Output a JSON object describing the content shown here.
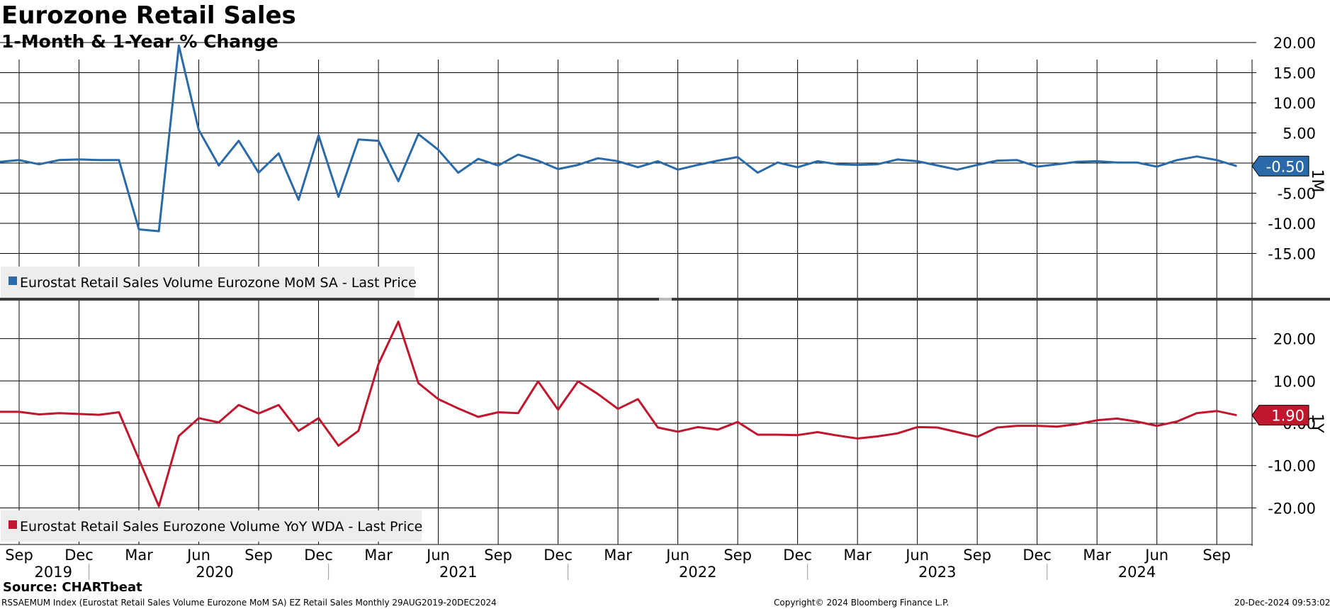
{
  "title": "Eurozone Retail Sales",
  "subtitle": "1-Month & 1-Year % Change",
  "footer": {
    "source": "Source: CHARTbeat",
    "info": "RSSAEMUM Index (Eurostat Retail Sales Volume Eurozone MoM SA) EZ Retail Sales  Monthly 29AUG2019-20DEC2024",
    "copyright": "Copyright© 2024 Bloomberg Finance L.P.",
    "timestamp": "20-Dec-2024 09:53:02"
  },
  "x_axis": {
    "month_labels": [
      "Sep",
      "Dec",
      "Mar",
      "Jun",
      "Sep",
      "Dec",
      "Mar",
      "Jun",
      "Sep",
      "Dec",
      "Mar",
      "Jun",
      "Sep",
      "Dec",
      "Mar",
      "Jun",
      "Sep",
      "Dec",
      "Mar",
      "Jun",
      "Sep"
    ],
    "year_labels": [
      "2019",
      "2020",
      "2021",
      "2022",
      "2023",
      "2024"
    ]
  },
  "colors": {
    "mom": "#2a6aa8",
    "yoy": "#c0172e",
    "grid": "#000000",
    "legend_bg": "#ededed"
  },
  "chart_data": [
    {
      "type": "line",
      "panel": "top",
      "axis_tag": "1M",
      "ylim": [
        -17.5,
        23
      ],
      "yticks": [
        20,
        15,
        10,
        5,
        0,
        -5,
        -10,
        -15
      ],
      "ytick_labels": [
        "20.00",
        "15.00",
        "10.00",
        "5.00",
        "",
        "-5.00",
        "-10.00",
        "-15.00"
      ],
      "last_value_label": "-0.50",
      "grid": true,
      "legend_position": "bottom-left",
      "series": [
        {
          "name": "Eurostat Retail Sales Volume Eurozone MoM SA - Last Price",
          "x": [
            "2019-08",
            "2019-09",
            "2019-10",
            "2019-11",
            "2019-12",
            "2020-01",
            "2020-02",
            "2020-03",
            "2020-04",
            "2020-05",
            "2020-06",
            "2020-07",
            "2020-08",
            "2020-09",
            "2020-10",
            "2020-11",
            "2020-12",
            "2021-01",
            "2021-02",
            "2021-03",
            "2021-04",
            "2021-05",
            "2021-06",
            "2021-07",
            "2021-08",
            "2021-09",
            "2021-10",
            "2021-11",
            "2021-12",
            "2022-01",
            "2022-02",
            "2022-03",
            "2022-04",
            "2022-05",
            "2022-06",
            "2022-07",
            "2022-08",
            "2022-09",
            "2022-10",
            "2022-11",
            "2022-12",
            "2023-01",
            "2023-02",
            "2023-03",
            "2023-04",
            "2023-05",
            "2023-06",
            "2023-07",
            "2023-08",
            "2023-09",
            "2023-10",
            "2023-11",
            "2023-12",
            "2024-01",
            "2024-02",
            "2024-03",
            "2024-04",
            "2024-05",
            "2024-06",
            "2024-07",
            "2024-08",
            "2024-09",
            "2024-10"
          ],
          "values": [
            0.2,
            0.5,
            -0.2,
            0.5,
            0.6,
            0.5,
            0.5,
            -11.0,
            -11.3,
            19.5,
            5.5,
            -0.4,
            3.7,
            -1.6,
            1.6,
            -6.1,
            4.6,
            -5.6,
            3.9,
            3.7,
            -3.0,
            4.8,
            2.2,
            -1.6,
            0.7,
            -0.4,
            1.4,
            0.4,
            -1.0,
            -0.3,
            0.8,
            0.3,
            -0.7,
            0.3,
            -1.1,
            -0.3,
            0.4,
            1.0,
            -1.6,
            0.1,
            -0.7,
            0.3,
            -0.2,
            -0.3,
            -0.2,
            0.6,
            0.3,
            -0.4,
            -1.1,
            -0.3,
            0.4,
            0.5,
            -0.6,
            -0.2,
            0.2,
            0.3,
            0.1,
            0.1,
            -0.6,
            0.5,
            1.1,
            0.5,
            -0.5
          ]
        }
      ]
    },
    {
      "type": "line",
      "panel": "bottom",
      "axis_tag": "1Y",
      "ylim": [
        -28,
        28.5
      ],
      "yticks": [
        20,
        10,
        0,
        -10,
        -20
      ],
      "ytick_labels": [
        "20.00",
        "10.00",
        "0.00",
        "-10.00",
        "-20.00"
      ],
      "last_value_label": "1.90",
      "grid": true,
      "legend_position": "bottom-left",
      "series": [
        {
          "name": "Eurostat Retail Sales Eurozone Volume YoY WDA - Last Price",
          "x": [
            "2019-08",
            "2019-09",
            "2019-10",
            "2019-11",
            "2019-12",
            "2020-01",
            "2020-02",
            "2020-03",
            "2020-04",
            "2020-05",
            "2020-06",
            "2020-07",
            "2020-08",
            "2020-09",
            "2020-10",
            "2020-11",
            "2020-12",
            "2021-01",
            "2021-02",
            "2021-03",
            "2021-04",
            "2021-05",
            "2021-06",
            "2021-07",
            "2021-08",
            "2021-09",
            "2021-10",
            "2021-11",
            "2021-12",
            "2022-01",
            "2022-02",
            "2022-03",
            "2022-04",
            "2022-05",
            "2022-06",
            "2022-07",
            "2022-08",
            "2022-09",
            "2022-10",
            "2022-11",
            "2022-12",
            "2023-01",
            "2023-02",
            "2023-03",
            "2023-04",
            "2023-05",
            "2023-06",
            "2023-07",
            "2023-08",
            "2023-09",
            "2023-10",
            "2023-11",
            "2023-12",
            "2024-01",
            "2024-02",
            "2024-03",
            "2024-04",
            "2024-05",
            "2024-06",
            "2024-07",
            "2024-08",
            "2024-09",
            "2024-10"
          ],
          "values": [
            2.7,
            2.7,
            2.1,
            2.4,
            2.2,
            2.0,
            2.6,
            -8.5,
            -19.6,
            -3.0,
            1.2,
            0.2,
            4.3,
            2.3,
            4.3,
            -1.8,
            1.2,
            -5.3,
            -1.8,
            14.0,
            24.0,
            9.5,
            5.7,
            3.5,
            1.5,
            2.6,
            2.4,
            9.9,
            3.2,
            9.9,
            6.9,
            3.4,
            5.7,
            -1.0,
            -2.0,
            -0.9,
            -1.5,
            0.3,
            -2.7,
            -2.7,
            -2.8,
            -2.1,
            -2.9,
            -3.6,
            -3.1,
            -2.4,
            -0.9,
            -1.0,
            -2.1,
            -3.2,
            -1.0,
            -0.6,
            -0.6,
            -0.8,
            -0.2,
            0.7,
            1.1,
            0.4,
            -0.6,
            0.4,
            2.4,
            2.9,
            1.9
          ]
        }
      ]
    }
  ]
}
